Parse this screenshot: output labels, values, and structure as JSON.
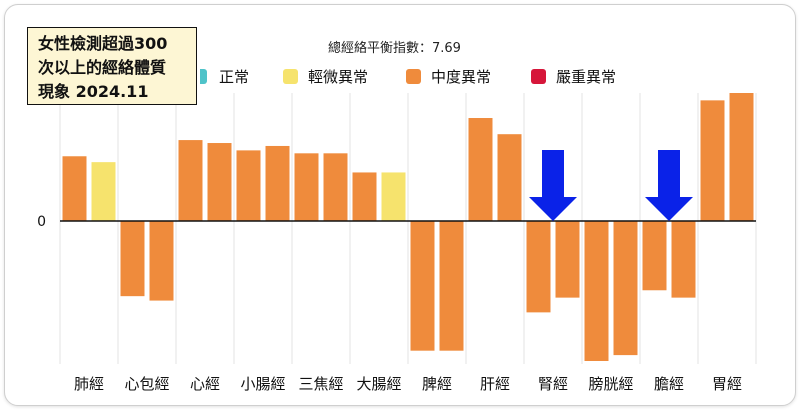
{
  "callout": {
    "lines": [
      "女性檢測超過300",
      "次以上的經絡體質",
      "現象 2024.11"
    ]
  },
  "subtitle": "總經絡平衡指數：7.69",
  "legend": [
    {
      "label": "正常",
      "color": "#4fc3c9"
    },
    {
      "label": "輕微異常",
      "color": "#f6e36d"
    },
    {
      "label": "中度異常",
      "color": "#ef8b3c"
    },
    {
      "label": "嚴重異常",
      "color": "#d6163a"
    }
  ],
  "colors": {
    "moderate": "#ef8b3c",
    "mild": "#f6e36d",
    "arrow": "#0a22e8",
    "gridline": "#e3e3e3",
    "zero_line": "#111111"
  },
  "chart_data": {
    "type": "bar",
    "categories": [
      "肺經",
      "心包經",
      "心經",
      "小腸經",
      "三焦經",
      "大腸經",
      "脾經",
      "肝經",
      "腎經",
      "膀胱經",
      "膽經",
      "胃經"
    ],
    "series": [
      {
        "values": [
          44,
          -51,
          55,
          48,
          46,
          33,
          -88,
          70,
          -62,
          -95,
          -47,
          82
        ],
        "levels": [
          "moderate",
          "moderate",
          "moderate",
          "moderate",
          "moderate",
          "moderate",
          "moderate",
          "moderate",
          "moderate",
          "moderate",
          "moderate",
          "moderate"
        ]
      },
      {
        "values": [
          40,
          -54,
          53,
          51,
          46,
          33,
          -88,
          59,
          -52,
          -91,
          -52,
          87
        ],
        "levels": [
          "mild",
          "moderate",
          "moderate",
          "moderate",
          "moderate",
          "mild",
          "moderate",
          "moderate",
          "moderate",
          "moderate",
          "moderate",
          "moderate"
        ]
      }
    ],
    "y_tick_labels": [
      "0"
    ],
    "ylim": [
      -95,
      87
    ],
    "grid": "vertical",
    "arrows_on": [
      "腎經",
      "膽經"
    ]
  }
}
